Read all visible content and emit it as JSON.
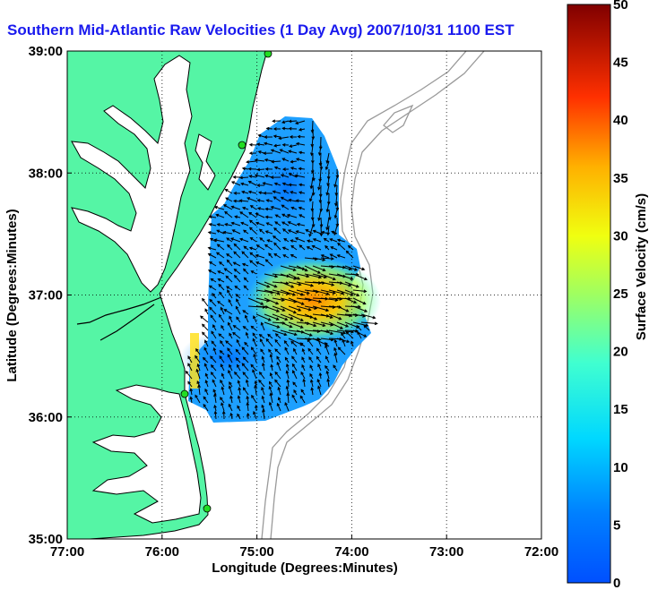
{
  "title": "Southern Mid-Atlantic Raw Velocities (1 Day Avg) 2007/10/31 1100 EST",
  "map": {
    "xlabel": "Longitude (Degrees:Minutes)",
    "ylabel": "Latitude (Degrees:Minutes)",
    "lon_range": [
      -77,
      -72
    ],
    "lat_range": [
      35,
      39
    ],
    "x_ticks": [
      "77:00",
      "76:00",
      "75:00",
      "74:00",
      "73:00",
      "72:00"
    ],
    "y_ticks": [
      "35:00",
      "36:00",
      "37:00",
      "38:00",
      "39:00"
    ],
    "grid": "dotted",
    "land_color": "#55f5a5",
    "water_color": "#ffffff",
    "bathymetry_color": "#9a9a9a",
    "vector_color": "#000000",
    "station_color": "#22dd22"
  },
  "colorbar": {
    "label": "Surface Velocity (cm/s)",
    "range": [
      0,
      50
    ],
    "ticks": [
      "0",
      "5",
      "10",
      "15",
      "20",
      "25",
      "30",
      "35",
      "40",
      "45",
      "50"
    ],
    "colormap": "jet"
  }
}
